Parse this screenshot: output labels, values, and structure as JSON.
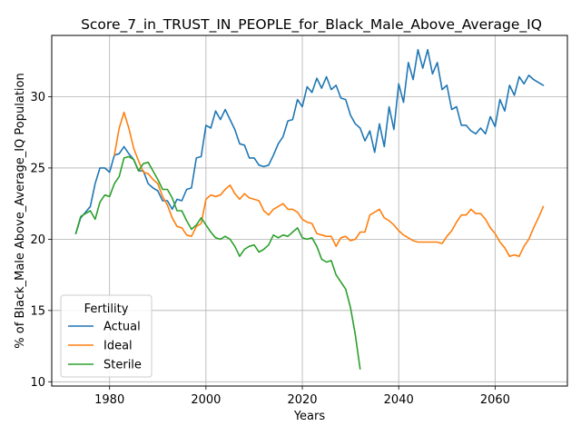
{
  "chart_data": {
    "type": "line",
    "title": "Score_7_in_TRUST_IN_PEOPLE_for_Black_Male_Above_Average_IQ",
    "xlabel": "Years",
    "ylabel": "% of Black_Male Above_Average_IQ Population",
    "xlim": [
      1968,
      2075
    ],
    "ylim": [
      9.7,
      34.3
    ],
    "xticks": [
      1980,
      2000,
      2020,
      2040,
      2060
    ],
    "yticks": [
      10,
      15,
      20,
      25,
      30
    ],
    "grid": true,
    "legend": {
      "title": "Fertility",
      "position": "lower-left"
    },
    "series": [
      {
        "name": "Actual",
        "color": "#1f77b4",
        "points": [
          [
            1973,
            20.4
          ],
          [
            1974,
            21.5
          ],
          [
            1975,
            21.9
          ],
          [
            1976,
            22.3
          ],
          [
            1977,
            23.9
          ],
          [
            1978,
            25.0
          ],
          [
            1979,
            25.0
          ],
          [
            1980,
            24.7
          ],
          [
            1981,
            25.9
          ],
          [
            1982,
            26.0
          ],
          [
            1983,
            26.5
          ],
          [
            1984,
            26.0
          ],
          [
            1985,
            25.6
          ],
          [
            1986,
            24.8
          ],
          [
            1987,
            24.8
          ],
          [
            1988,
            23.9
          ],
          [
            1989,
            23.6
          ],
          [
            1990,
            23.4
          ],
          [
            1991,
            22.7
          ],
          [
            1992,
            22.7
          ],
          [
            1993,
            22.1
          ],
          [
            1994,
            22.8
          ],
          [
            1995,
            22.7
          ],
          [
            1996,
            23.5
          ],
          [
            1997,
            23.6
          ],
          [
            1998,
            25.7
          ],
          [
            1999,
            25.8
          ],
          [
            2000,
            28.0
          ],
          [
            2001,
            27.8
          ],
          [
            2002,
            29.0
          ],
          [
            2003,
            28.4
          ],
          [
            2004,
            29.1
          ],
          [
            2005,
            28.4
          ],
          [
            2006,
            27.7
          ],
          [
            2007,
            26.7
          ],
          [
            2008,
            26.6
          ],
          [
            2009,
            25.7
          ],
          [
            2010,
            25.7
          ],
          [
            2011,
            25.2
          ],
          [
            2012,
            25.1
          ],
          [
            2013,
            25.2
          ],
          [
            2014,
            25.9
          ],
          [
            2015,
            26.7
          ],
          [
            2016,
            27.2
          ],
          [
            2017,
            28.3
          ],
          [
            2018,
            28.4
          ],
          [
            2019,
            29.8
          ],
          [
            2020,
            29.3
          ],
          [
            2021,
            30.7
          ],
          [
            2022,
            30.3
          ],
          [
            2023,
            31.3
          ],
          [
            2024,
            30.6
          ],
          [
            2025,
            31.4
          ],
          [
            2026,
            30.5
          ],
          [
            2027,
            30.8
          ],
          [
            2028,
            29.9
          ],
          [
            2029,
            29.8
          ],
          [
            2030,
            28.7
          ],
          [
            2031,
            28.1
          ],
          [
            2032,
            27.8
          ],
          [
            2033,
            26.9
          ],
          [
            2034,
            27.6
          ],
          [
            2035,
            26.1
          ],
          [
            2036,
            28.1
          ],
          [
            2037,
            26.5
          ],
          [
            2038,
            29.3
          ],
          [
            2039,
            27.7
          ],
          [
            2040,
            30.9
          ],
          [
            2041,
            29.6
          ],
          [
            2042,
            32.4
          ],
          [
            2043,
            31.2
          ],
          [
            2044,
            33.3
          ],
          [
            2045,
            32.0
          ],
          [
            2046,
            33.3
          ],
          [
            2047,
            31.6
          ],
          [
            2048,
            32.4
          ],
          [
            2049,
            30.5
          ],
          [
            2050,
            30.8
          ],
          [
            2051,
            29.1
          ],
          [
            2052,
            29.3
          ],
          [
            2053,
            28.0
          ],
          [
            2054,
            28.0
          ],
          [
            2055,
            27.6
          ],
          [
            2056,
            27.4
          ],
          [
            2057,
            27.8
          ],
          [
            2058,
            27.4
          ],
          [
            2059,
            28.6
          ],
          [
            2060,
            27.9
          ],
          [
            2061,
            29.8
          ],
          [
            2062,
            29.0
          ],
          [
            2063,
            30.8
          ],
          [
            2064,
            30.1
          ],
          [
            2065,
            31.4
          ],
          [
            2066,
            30.9
          ],
          [
            2067,
            31.5
          ],
          [
            2068,
            31.2
          ],
          [
            2069,
            31.0
          ],
          [
            2070,
            30.8
          ]
        ]
      },
      {
        "name": "Ideal",
        "color": "#ff7f0e",
        "points": [
          [
            1981,
            25.9
          ],
          [
            1982,
            27.8
          ],
          [
            1983,
            28.9
          ],
          [
            1984,
            27.8
          ],
          [
            1985,
            26.4
          ],
          [
            1986,
            25.5
          ],
          [
            1987,
            24.7
          ],
          [
            1988,
            24.6
          ],
          [
            1989,
            24.2
          ],
          [
            1990,
            23.9
          ],
          [
            1991,
            23.0
          ],
          [
            1992,
            22.4
          ],
          [
            1993,
            21.5
          ],
          [
            1994,
            20.9
          ],
          [
            1995,
            20.8
          ],
          [
            1996,
            20.3
          ],
          [
            1997,
            20.2
          ],
          [
            1998,
            20.9
          ],
          [
            1999,
            21.1
          ],
          [
            2000,
            22.8
          ],
          [
            2001,
            23.1
          ],
          [
            2002,
            23.0
          ],
          [
            2003,
            23.1
          ],
          [
            2004,
            23.5
          ],
          [
            2005,
            23.8
          ],
          [
            2006,
            23.2
          ],
          [
            2007,
            22.8
          ],
          [
            2008,
            23.2
          ],
          [
            2009,
            22.9
          ],
          [
            2010,
            22.8
          ],
          [
            2011,
            22.7
          ],
          [
            2012,
            22.0
          ],
          [
            2013,
            21.7
          ],
          [
            2014,
            22.1
          ],
          [
            2015,
            22.3
          ],
          [
            2016,
            22.5
          ],
          [
            2017,
            22.1
          ],
          [
            2018,
            22.1
          ],
          [
            2019,
            21.9
          ],
          [
            2020,
            21.4
          ],
          [
            2021,
            21.2
          ],
          [
            2022,
            21.1
          ],
          [
            2023,
            20.4
          ],
          [
            2024,
            20.3
          ],
          [
            2025,
            20.2
          ],
          [
            2026,
            20.2
          ],
          [
            2027,
            19.5
          ],
          [
            2028,
            20.1
          ],
          [
            2029,
            20.2
          ],
          [
            2030,
            19.9
          ],
          [
            2031,
            20.0
          ],
          [
            2032,
            20.5
          ],
          [
            2033,
            20.5
          ],
          [
            2034,
            21.7
          ],
          [
            2035,
            21.9
          ],
          [
            2036,
            22.1
          ],
          [
            2037,
            21.5
          ],
          [
            2038,
            21.3
          ],
          [
            2039,
            21.0
          ],
          [
            2040,
            20.6
          ],
          [
            2041,
            20.3
          ],
          [
            2042,
            20.1
          ],
          [
            2043,
            19.9
          ],
          [
            2044,
            19.8
          ],
          [
            2045,
            19.8
          ],
          [
            2046,
            19.8
          ],
          [
            2047,
            19.8
          ],
          [
            2048,
            19.8
          ],
          [
            2049,
            19.7
          ],
          [
            2050,
            20.2
          ],
          [
            2051,
            20.6
          ],
          [
            2052,
            21.2
          ],
          [
            2053,
            21.7
          ],
          [
            2054,
            21.7
          ],
          [
            2055,
            22.1
          ],
          [
            2056,
            21.8
          ],
          [
            2057,
            21.8
          ],
          [
            2058,
            21.4
          ],
          [
            2059,
            20.8
          ],
          [
            2060,
            20.4
          ],
          [
            2061,
            19.8
          ],
          [
            2062,
            19.4
          ],
          [
            2063,
            18.8
          ],
          [
            2064,
            18.9
          ],
          [
            2065,
            18.8
          ],
          [
            2066,
            19.5
          ],
          [
            2067,
            20.0
          ],
          [
            2068,
            20.8
          ],
          [
            2069,
            21.5
          ],
          [
            2070,
            22.3
          ]
        ]
      },
      {
        "name": "Sterile",
        "color": "#2ca02c",
        "points": [
          [
            1973,
            20.4
          ],
          [
            1974,
            21.6
          ],
          [
            1975,
            21.8
          ],
          [
            1976,
            22.0
          ],
          [
            1977,
            21.4
          ],
          [
            1978,
            22.6
          ],
          [
            1979,
            23.1
          ],
          [
            1980,
            23.0
          ],
          [
            1981,
            23.9
          ],
          [
            1982,
            24.4
          ],
          [
            1983,
            25.7
          ],
          [
            1984,
            25.8
          ],
          [
            1985,
            25.6
          ],
          [
            1986,
            24.8
          ],
          [
            1987,
            25.3
          ],
          [
            1988,
            25.4
          ],
          [
            1989,
            24.8
          ],
          [
            1990,
            24.2
          ],
          [
            1991,
            23.5
          ],
          [
            1992,
            23.5
          ],
          [
            1993,
            22.9
          ],
          [
            1994,
            22.0
          ],
          [
            1995,
            22.0
          ],
          [
            1996,
            21.3
          ],
          [
            1997,
            20.7
          ],
          [
            1998,
            21.0
          ],
          [
            1999,
            21.5
          ],
          [
            2000,
            21.0
          ],
          [
            2001,
            20.5
          ],
          [
            2002,
            20.1
          ],
          [
            2003,
            20.0
          ],
          [
            2004,
            20.2
          ],
          [
            2005,
            20.0
          ],
          [
            2006,
            19.5
          ],
          [
            2007,
            18.8
          ],
          [
            2008,
            19.3
          ],
          [
            2009,
            19.5
          ],
          [
            2010,
            19.6
          ],
          [
            2011,
            19.1
          ],
          [
            2012,
            19.3
          ],
          [
            2013,
            19.6
          ],
          [
            2014,
            20.3
          ],
          [
            2015,
            20.1
          ],
          [
            2016,
            20.3
          ],
          [
            2017,
            20.2
          ],
          [
            2018,
            20.5
          ],
          [
            2019,
            20.8
          ],
          [
            2020,
            20.1
          ],
          [
            2021,
            20.0
          ],
          [
            2022,
            20.1
          ],
          [
            2023,
            19.5
          ],
          [
            2024,
            18.6
          ],
          [
            2025,
            18.4
          ],
          [
            2026,
            18.5
          ],
          [
            2027,
            17.5
          ],
          [
            2028,
            17.0
          ],
          [
            2029,
            16.5
          ],
          [
            2030,
            15.2
          ],
          [
            2031,
            13.3
          ],
          [
            2032,
            10.9
          ]
        ]
      }
    ]
  }
}
